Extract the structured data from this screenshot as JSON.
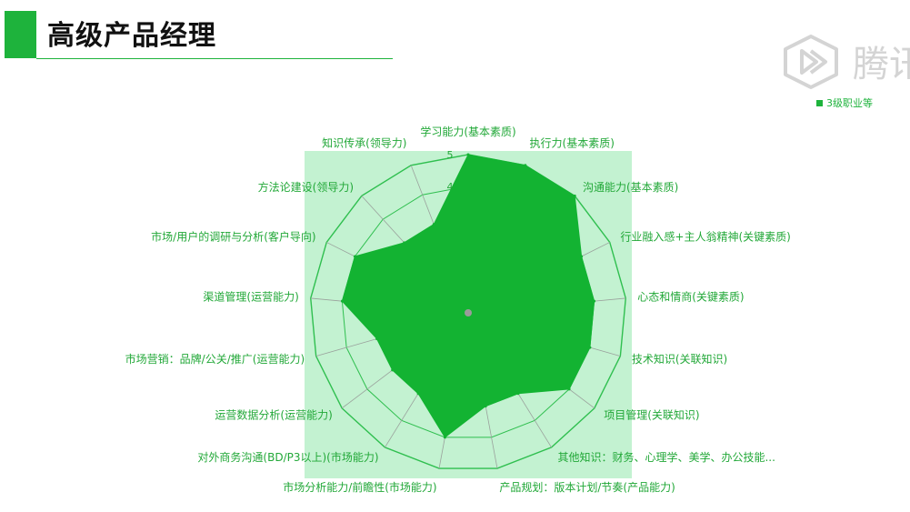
{
  "slide": {
    "title": "高级产品经理"
  },
  "logo": {
    "text": "腾讯"
  },
  "colors": {
    "accent": "#1eb33c",
    "fill": "#13b332",
    "plot_bg": "#c3f2d1",
    "label": "#22a838",
    "grid": "#2fbf4f"
  },
  "chart_data": {
    "type": "radar",
    "max": 5,
    "radial_ticks": [
      "4",
      "5"
    ],
    "legend_position": "top-right",
    "categories": [
      "学习能力(基本素质)",
      "执行力(基本素质)",
      "沟通能力(基本素质)",
      "行业融入感+主人翁精神(关键素质)",
      "心态和情商(关键素质)",
      "技术知识(关联知识)",
      "项目管理(关联知识)",
      "其他知识：财务、心理学、美学、办公技能...",
      "产品规划：版本计划/节奏(产品能力)",
      "市场分析能力/前瞻性(市场能力)",
      "对外商务沟通(BD/P3以上)(市场能力)",
      "运营数据分析(运营能力)",
      "市场营销：品牌/公关/推广(运营能力)",
      "渠道管理(运营能力)",
      "市场/用户的调研与分析(客户导向)",
      "方法论建设(领导力)",
      "知识传承(领导力)"
    ],
    "series": [
      {
        "name": "3级职业等",
        "values": [
          5,
          5,
          5,
          4,
          4,
          4,
          4,
          3,
          3,
          4,
          3,
          3,
          3,
          4,
          4,
          3,
          3
        ]
      }
    ]
  }
}
